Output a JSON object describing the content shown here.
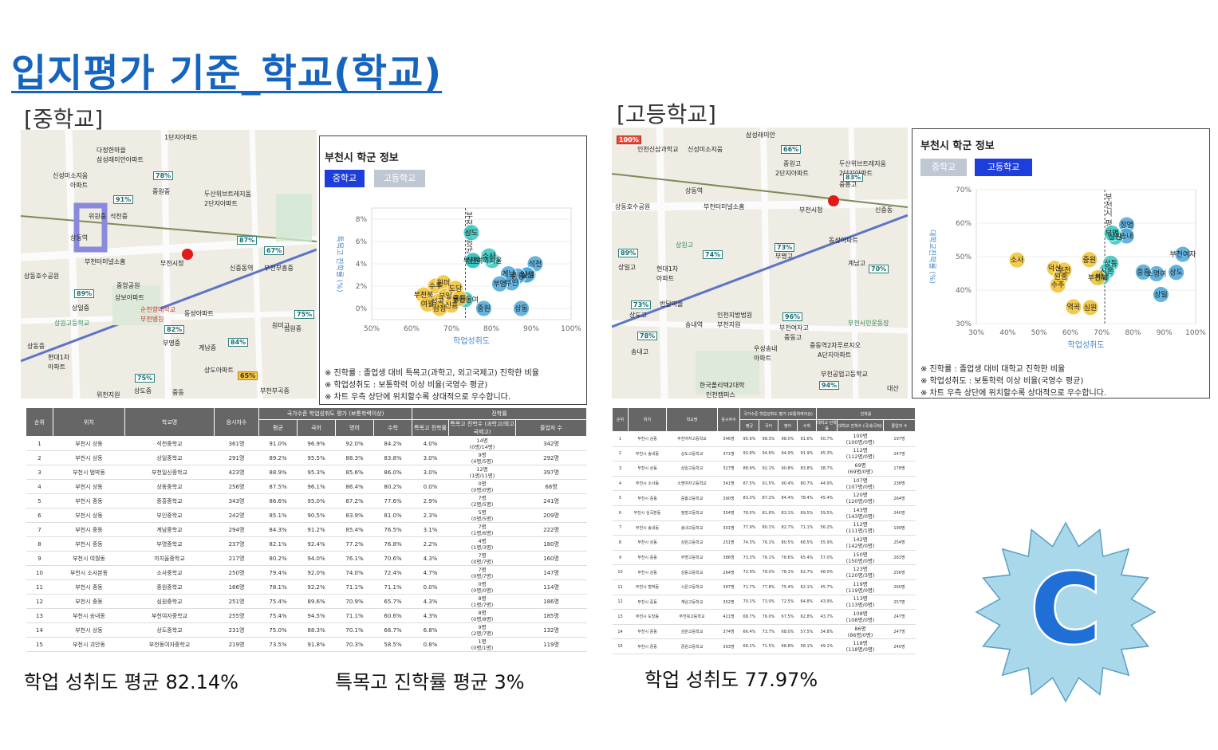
{
  "title": "입지평가 기준_학교(학교)",
  "middle": {
    "label": "[중학교]",
    "map_labels": [
      "다정한마을",
      "삼성래미안아파트",
      "1단지아파트",
      "신성미소지움",
      "아파트",
      "위원중",
      "석천중",
      "중원중",
      "두산위브트레지움",
      "2단지아파트",
      "상동역",
      "부천시청",
      "신중동역",
      "부천부흥중",
      "부천터미널소홈",
      "상동호수공원",
      "상일중",
      "상보아파트",
      "중앙공원",
      "순천향대학교",
      "부천병원",
      "동성아파트",
      "상원고등학교",
      "현대1차",
      "아파트",
      "계남중",
      "원미고",
      "심원중",
      "부명중",
      "부천부곡중",
      "상도중",
      "위천지원",
      "중동",
      "상동중",
      "상도아파트"
    ],
    "map_markers": [
      "78%",
      "91%",
      "87%",
      "67%",
      "89%",
      "82%",
      "84%",
      "75%",
      "65%",
      "75%"
    ],
    "panel": {
      "title": "부천시 학군 정보",
      "tab_active": "중학교",
      "tab_inactive": "고등학교",
      "y_label": "특목고 진학률 (%)",
      "x_label": "학업성취도",
      "ref_label": "부천시 평균",
      "notes": [
        "※ 진학률 : 졸업생 대비 특목고(과학고, 외고국제고) 진학한 비율",
        "※ 학업성취도 : 보통학력 이상 비율(국영수 평균)",
        "※ 차트 우측 상단에 위치할수록 상대적으로 우수합니다."
      ]
    },
    "table": {
      "headers_top": [
        "순위",
        "위치",
        "학교명",
        "응시자수",
        "국가수준 학업성취도 평가 (보통학력이상)",
        "진학률"
      ],
      "headers_sub": [
        "평균",
        "국어",
        "영어",
        "수학",
        "특목고 진학률",
        "특목고 진학수 (과학고/외고국제고)",
        "졸업자 수"
      ],
      "rows": [
        [
          "1",
          "부천시 상동",
          "석천중학교",
          "361명",
          "91.0%",
          "96.9%",
          "92.0%",
          "84.2%",
          "4.0%",
          "14명",
          "(0명/14명)",
          "342명"
        ],
        [
          "2",
          "부천시 상동",
          "상일중학교",
          "291명",
          "89.2%",
          "95.5%",
          "88.3%",
          "83.8%",
          "3.0%",
          "9명",
          "(4명/5명)",
          "292명"
        ],
        [
          "3",
          "부천시 범박동",
          "부천일신중학교",
          "423명",
          "88.9%",
          "95.3%",
          "85.6%",
          "86.0%",
          "3.0%",
          "12명",
          "(1명/11명)",
          "397명"
        ],
        [
          "4",
          "부천시 상동",
          "상동중학교",
          "256명",
          "87.5%",
          "96.1%",
          "86.4%",
          "80.2%",
          "0.0%",
          "0명",
          "(0명/0명)",
          "68명"
        ],
        [
          "5",
          "부천시 중동",
          "중흥중학교",
          "343명",
          "86.6%",
          "95.0%",
          "87.2%",
          "77.6%",
          "2.9%",
          "7명",
          "(2명/5명)",
          "241명"
        ],
        [
          "6",
          "부천시 상동",
          "부인중학교",
          "242명",
          "85.1%",
          "90.5%",
          "83.9%",
          "81.0%",
          "2.3%",
          "5명",
          "(0명/5명)",
          "209명"
        ],
        [
          "7",
          "부천시 중동",
          "계남중학교",
          "294명",
          "84.3%",
          "91.2%",
          "85.4%",
          "76.5%",
          "3.1%",
          "7명",
          "(1명/6명)",
          "222명"
        ],
        [
          "8",
          "부천시 중동",
          "부명중학교",
          "237명",
          "82.1%",
          "92.4%",
          "77.2%",
          "76.8%",
          "2.2%",
          "4명",
          "(1명/3명)",
          "180명"
        ],
        [
          "9",
          "부천시 여월동",
          "까치울중학교",
          "217명",
          "80.2%",
          "94.0%",
          "76.1%",
          "70.6%",
          "4.3%",
          "7명",
          "(0명/7명)",
          "160명"
        ],
        [
          "10",
          "부천시 소사본동",
          "소사중학교",
          "250명",
          "79.4%",
          "92.0%",
          "74.0%",
          "72.4%",
          "4.7%",
          "7명",
          "(0명/7명)",
          "147명"
        ],
        [
          "11",
          "부천시 중동",
          "중원중학교",
          "166명",
          "78.1%",
          "92.2%",
          "71.1%",
          "71.1%",
          "0.0%",
          "0명",
          "(0명/0명)",
          "114명"
        ],
        [
          "12",
          "부천시 중동",
          "심원중학교",
          "251명",
          "75.4%",
          "89.6%",
          "70.9%",
          "65.7%",
          "4.3%",
          "8명",
          "(1명/7명)",
          "186명"
        ],
        [
          "13",
          "부천시 송내동",
          "부천여자중학교",
          "255명",
          "75.4%",
          "94.5%",
          "71.1%",
          "60.6%",
          "4.3%",
          "8명",
          "(0명/8명)",
          "185명"
        ],
        [
          "14",
          "부천시 상동",
          "상도중학교",
          "231명",
          "75.0%",
          "88.3%",
          "70.1%",
          "66.7%",
          "6.8%",
          "9명",
          "(2명/7명)",
          "132명"
        ],
        [
          "15",
          "부천시 괴안동",
          "부천동여자중학교",
          "219명",
          "73.5%",
          "91.8%",
          "70.3%",
          "58.5%",
          "0.8%",
          "1명",
          "(0명/1명)",
          "119명"
        ]
      ]
    },
    "summary_achievement": "학업 성취도 평균 82.14%",
    "summary_special": "특목고 진학률 평균 3%"
  },
  "high": {
    "label": "[고등학교]",
    "map_labels": [
      "인천신삼과학교",
      "삼성래미안",
      "신성미소지움",
      "중원고",
      "2단지아파트",
      "두산위브트레지움",
      "2단지아파트",
      "중흥고",
      "상동역",
      "부천시청",
      "신중동",
      "부천터미널소홈",
      "상동호수공원",
      "상원고",
      "부명고",
      "동성아파트",
      "계남고",
      "상일고",
      "현대1차",
      "아파트",
      "인천지방법원",
      "부천지원",
      "송내역",
      "반달마을",
      "상도고",
      "부천여자고",
      "중동고",
      "부천시민운동장",
      "송내고",
      "우성송내",
      "아파트",
      "중동역2차푸르지오",
      "A단지아파트",
      "한국폴리텍2대학",
      "인천캠퍼스",
      "부천공업고등학교",
      "대산"
    ],
    "map_markers": [
      "100%",
      "66%",
      "83%",
      "89%",
      "74%",
      "73%",
      "70%",
      "73%",
      "96%",
      "78%",
      "94%"
    ],
    "panel": {
      "title": "부천시 학군 정보",
      "tab_inactive": "중학교",
      "tab_active": "고등학교",
      "y_label": "대학교진학률 (%)",
      "x_label": "학업성취도",
      "ref_label": "부천시 평균",
      "notes": [
        "※ 진학률 : 졸업생 대비 대학교 진학한 비율",
        "※ 학업성취도 : 보통학력 이상 비율(국영수 평균)",
        "※ 차트 우측 상단에 위치할수록 상대적으로 우수합니다."
      ]
    },
    "table": {
      "headers_top": [
        "순위",
        "위치",
        "학교명",
        "응시자수",
        "국가수준 학업성취도 평가 (보통학력이상)",
        "진학률"
      ],
      "headers_sub": [
        "평균",
        "국어",
        "영어",
        "수학",
        "대학교 진학률",
        "대학교 진학수 (국내/국외)",
        "졸업자 수"
      ],
      "rows": [
        [
          "1",
          "부천시 상동",
          "부천여자고등학교",
          "346명",
          "95.9%",
          "98.3%",
          "98.0%",
          "91.6%",
          "50.7%",
          "100명",
          "(100명/0명)",
          "197명"
        ],
        [
          "2",
          "부천시 송내동",
          "상도고등학교",
          "371명",
          "93.8%",
          "94.6%",
          "94.9%",
          "91.9%",
          "45.3%",
          "112명",
          "(112명/0명)",
          "247명"
        ],
        [
          "3",
          "부천시 상동",
          "상일고등학교",
          "327명",
          "88.9%",
          "92.1%",
          "90.8%",
          "83.8%",
          "38.7%",
          "69명",
          "(69명/0명)",
          "178명"
        ],
        [
          "4",
          "부천시 소사동",
          "소명여자고등학교",
          "341명",
          "87.5%",
          "91.5%",
          "90.4%",
          "80.7%",
          "44.9%",
          "107명",
          "(107명/0명)",
          "238명"
        ],
        [
          "5",
          "부천시 중동",
          "중흥고등학교",
          "390명",
          "83.3%",
          "87.2%",
          "84.4%",
          "78.4%",
          "45.4%",
          "120명",
          "(120명/0명)",
          "264명"
        ],
        [
          "6",
          "부천시 심곡본동",
          "정명고등학교",
          "354명",
          "78.0%",
          "81.6%",
          "83.1%",
          "69.5%",
          "59.5%",
          "143명",
          "(143명/0명)",
          "240명"
        ],
        [
          "7",
          "부천시 송내동",
          "송내고등학교",
          "301명",
          "77.9%",
          "80.1%",
          "82.7%",
          "71.1%",
          "56.2%",
          "112명",
          "(111명/1명)",
          "199명"
        ],
        [
          "8",
          "부천시 상동",
          "상원고등학교",
          "251명",
          "74.3%",
          "76.1%",
          "80.5%",
          "66.5%",
          "55.9%",
          "142명",
          "(142명/0명)",
          "254명"
        ],
        [
          "9",
          "부천시 중동",
          "부명고등학교",
          "386명",
          "73.3%",
          "76.1%",
          "78.6%",
          "65.4%",
          "57.0%",
          "150명",
          "(150명/0명)",
          "263명"
        ],
        [
          "10",
          "부천시 상동",
          "상동고등학교",
          "264명",
          "72.9%",
          "78.0%",
          "78.1%",
          "62.7%",
          "48.0%",
          "123명",
          "(120명/3명)",
          "256명"
        ],
        [
          "11",
          "부천시 범박동",
          "시온고등학교",
          "387명",
          "71.7%",
          "77.8%",
          "75.4%",
          "62.1%",
          "45.7%",
          "119명",
          "(119명/0명)",
          "260명"
        ],
        [
          "12",
          "부천시 중동",
          "계남고등학교",
          "352명",
          "70.1%",
          "73.0%",
          "72.5%",
          "64.8%",
          "43.9%",
          "113명",
          "(113명/0명)",
          "257명"
        ],
        [
          "13",
          "부천시 도당동",
          "부천북고등학교",
          "421명",
          "68.7%",
          "76.0%",
          "67.5%",
          "62.8%",
          "43.7%",
          "108명",
          "(108명/0명)",
          "247명"
        ],
        [
          "14",
          "부천시 중동",
          "심원고등학교",
          "374명",
          "66.4%",
          "73.7%",
          "68.0%",
          "57.5%",
          "34.8%",
          "86명",
          "(86명/0명)",
          "247명"
        ],
        [
          "15",
          "부천시 중동",
          "중원고등학교",
          "393명",
          "66.1%",
          "71.5%",
          "68.8%",
          "58.1%",
          "49.1%",
          "118명",
          "(118명/0명)",
          "240명"
        ]
      ]
    },
    "summary_achievement": "학업 성취도 77.97%"
  },
  "grade": "C",
  "colors": {
    "title": "#1565c0",
    "tab_active": "#1e3edb",
    "tab_inactive": "#bfc7d3",
    "bubble_blue": "#4aa7d8",
    "bubble_teal": "#36c5c0",
    "bubble_gold": "#f1c232",
    "star": "#a9d8ea"
  },
  "chart_data": [
    {
      "type": "scatter",
      "title": "부천시 학군 정보",
      "xlabel": "학업성취도",
      "ylabel": "특목고 진학률 (%)",
      "xlim": [
        50,
        100
      ],
      "ylim": [
        -1,
        9
      ],
      "xticks": [
        "50%",
        "60%",
        "70%",
        "80%",
        "90%",
        "100%"
      ],
      "yticks": [
        "0%",
        "2%",
        "4%",
        "6%",
        "8%"
      ],
      "reference_x": 73.5,
      "reference_label": "부천시 평균",
      "points": [
        {
          "label": "석천",
          "x": 91.0,
          "y": 4.0,
          "color": "#4aa7d8"
        },
        {
          "label": "상일",
          "x": 89.2,
          "y": 3.0,
          "color": "#4aa7d8"
        },
        {
          "label": "일신",
          "x": 88.9,
          "y": 3.0,
          "color": "#4aa7d8"
        },
        {
          "label": "상동",
          "x": 87.5,
          "y": 0.0,
          "color": "#4aa7d8"
        },
        {
          "label": "중흥",
          "x": 86.6,
          "y": 2.9,
          "color": "#4aa7d8"
        },
        {
          "label": "부인",
          "x": 85.1,
          "y": 2.3,
          "color": "#4aa7d8"
        },
        {
          "label": "계남",
          "x": 84.3,
          "y": 3.1,
          "color": "#4aa7d8"
        },
        {
          "label": "부명",
          "x": 82.1,
          "y": 2.2,
          "color": "#4aa7d8"
        },
        {
          "label": "까치울",
          "x": 80.2,
          "y": 4.3,
          "color": "#36c5c0"
        },
        {
          "label": "소사",
          "x": 79.4,
          "y": 4.7,
          "color": "#36c5c0"
        },
        {
          "label": "중원",
          "x": 78.1,
          "y": 0.0,
          "color": "#4aa7d8"
        },
        {
          "label": "심원",
          "x": 75.4,
          "y": 4.3,
          "color": "#36c5c0"
        },
        {
          "label": "부천여",
          "x": 75.4,
          "y": 4.3,
          "color": "#36c5c0"
        },
        {
          "label": "상도",
          "x": 75.0,
          "y": 6.8,
          "color": "#36c5c0"
        },
        {
          "label": "부천동여",
          "x": 73.5,
          "y": 0.8,
          "color": "#36c5c0"
        },
        {
          "label": "수주",
          "x": 66.0,
          "y": 2.0,
          "color": "#f1c232"
        },
        {
          "label": "원미",
          "x": 68.0,
          "y": 2.3,
          "color": "#f1c232"
        },
        {
          "label": "부천북",
          "x": 63.0,
          "y": 1.2,
          "color": "#f1c232"
        },
        {
          "label": "부일",
          "x": 68.5,
          "y": 1.1,
          "color": "#f1c232"
        },
        {
          "label": "성곡",
          "x": 66.5,
          "y": 0.6,
          "color": "#f1c232"
        },
        {
          "label": "신흥",
          "x": 70.0,
          "y": 0.3,
          "color": "#f1c232"
        },
        {
          "label": "여월",
          "x": 64.0,
          "y": 0.4,
          "color": "#f1c232"
        },
        {
          "label": "도당",
          "x": 71.0,
          "y": 1.8,
          "color": "#f1c232"
        },
        {
          "label": "삼정",
          "x": 67.0,
          "y": 0.0,
          "color": "#f1c232"
        },
        {
          "label": "중동",
          "x": 72.0,
          "y": 0.9,
          "color": "#f1c232"
        }
      ]
    },
    {
      "type": "scatter",
      "title": "부천시 학군 정보",
      "xlabel": "학업성취도",
      "ylabel": "대학교진학률 (%)",
      "xlim": [
        30,
        100
      ],
      "ylim": [
        30,
        70
      ],
      "xticks": [
        "30%",
        "40%",
        "50%",
        "60%",
        "70%",
        "80%",
        "90%",
        "100%"
      ],
      "yticks": [
        "30%",
        "40%",
        "50%",
        "60%",
        "70%"
      ],
      "reference_x": 71.0,
      "reference_label": "부천시 평균",
      "points": [
        {
          "label": "부천여자",
          "x": 95.9,
          "y": 50.7,
          "color": "#4aa7d8"
        },
        {
          "label": "상도",
          "x": 93.8,
          "y": 45.3,
          "color": "#4aa7d8"
        },
        {
          "label": "상일",
          "x": 88.9,
          "y": 38.7,
          "color": "#4aa7d8"
        },
        {
          "label": "소명여",
          "x": 87.5,
          "y": 44.9,
          "color": "#4aa7d8"
        },
        {
          "label": "중흥",
          "x": 83.3,
          "y": 45.4,
          "color": "#4aa7d8"
        },
        {
          "label": "정명",
          "x": 78.0,
          "y": 59.5,
          "color": "#4aa7d8"
        },
        {
          "label": "송내",
          "x": 77.9,
          "y": 56.2,
          "color": "#4aa7d8"
        },
        {
          "label": "상원",
          "x": 74.3,
          "y": 55.9,
          "color": "#36c5c0"
        },
        {
          "label": "부명",
          "x": 73.3,
          "y": 57.0,
          "color": "#36c5c0"
        },
        {
          "label": "상동",
          "x": 72.9,
          "y": 48.0,
          "color": "#36c5c0"
        },
        {
          "label": "시온",
          "x": 71.7,
          "y": 45.7,
          "color": "#36c5c0"
        },
        {
          "label": "계남",
          "x": 70.1,
          "y": 43.9,
          "color": "#36c5c0"
        },
        {
          "label": "부천북",
          "x": 68.7,
          "y": 43.7,
          "color": "#f1c232"
        },
        {
          "label": "심원",
          "x": 66.4,
          "y": 34.8,
          "color": "#f1c232"
        },
        {
          "label": "중원",
          "x": 66.1,
          "y": 49.1,
          "color": "#f1c232"
        },
        {
          "label": "소사",
          "x": 43.0,
          "y": 49.0,
          "color": "#f1c232"
        },
        {
          "label": "덕산",
          "x": 55.0,
          "y": 46.5,
          "color": "#f1c232"
        },
        {
          "label": "원종",
          "x": 57.0,
          "y": 44.0,
          "color": "#f1c232"
        },
        {
          "label": "수주",
          "x": 56.0,
          "y": 41.5,
          "color": "#f1c232"
        },
        {
          "label": "역곡",
          "x": 61.0,
          "y": 35.0,
          "color": "#f1c232"
        },
        {
          "label": "부천",
          "x": 58.0,
          "y": 46.0,
          "color": "#f1c232"
        }
      ]
    }
  ]
}
